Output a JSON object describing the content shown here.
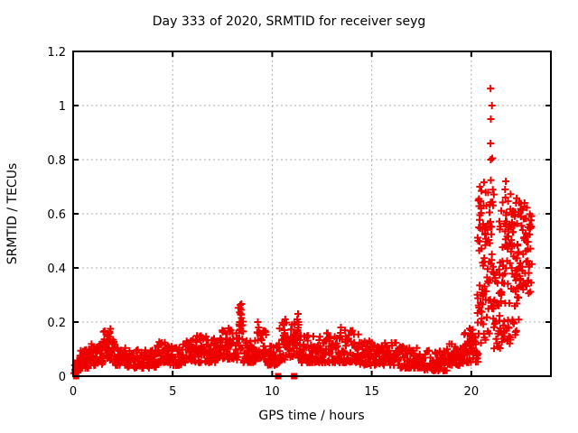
{
  "window": {
    "title": "Day 333 of 2020, SRMTID for receiver seyg"
  },
  "chart_data": {
    "type": "scatter",
    "title": "Day 333 of 2020, SRMTID for receiver seyg",
    "xlabel": "GPS time / hours",
    "ylabel": "SRMTID / TECUs",
    "xlim": [
      0,
      24
    ],
    "ylim": [
      0,
      1.2
    ],
    "xticks": {
      "values": [
        0,
        5,
        10,
        15,
        20
      ],
      "labels": [
        "0",
        "5",
        "10",
        "15",
        "20"
      ]
    },
    "yticks": {
      "values": [
        0,
        0.2,
        0.4,
        0.6,
        0.8,
        1.0,
        1.2
      ],
      "labels": [
        "0",
        "0.2",
        "0.4",
        "0.6",
        "0.8",
        "1",
        "1.2"
      ]
    },
    "grid": true,
    "grid_style": "dashed",
    "legend": "none",
    "marker": {
      "shape": "plus",
      "color": "#ee0000",
      "size": 9
    },
    "colors": {
      "points": "#ee0000",
      "grid": "#b0b0b0",
      "border": "#000000",
      "background": "#ffffff"
    },
    "seed": 7,
    "series": {
      "name": "SRMTID",
      "description": "Dense band of + markers ~0.03-0.18 TECUs from 0-20.3h with bumps and spikes, large burst 20.3-23.0h reaching 1.06",
      "segments_format": [
        "x_start_hours",
        "x_end_hours",
        "n_points",
        "y_min",
        "y_max",
        "bias_exponent"
      ],
      "segments": [
        [
          0.05,
          0.35,
          18,
          0.01,
          0.06,
          1.4
        ],
        [
          0.3,
          0.9,
          40,
          0.03,
          0.1,
          1.6
        ],
        [
          0.9,
          1.5,
          40,
          0.04,
          0.12,
          1.6
        ],
        [
          1.5,
          2.1,
          45,
          0.06,
          0.17,
          1.5
        ],
        [
          2.1,
          2.7,
          40,
          0.04,
          0.11,
          1.6
        ],
        [
          2.7,
          3.4,
          45,
          0.03,
          0.1,
          1.6
        ],
        [
          3.4,
          4.2,
          50,
          0.03,
          0.1,
          1.6
        ],
        [
          4.2,
          4.8,
          40,
          0.05,
          0.13,
          1.6
        ],
        [
          4.8,
          5.5,
          45,
          0.04,
          0.11,
          1.6
        ],
        [
          5.5,
          6.2,
          45,
          0.05,
          0.14,
          1.5
        ],
        [
          6.2,
          7.3,
          70,
          0.05,
          0.15,
          1.5
        ],
        [
          7.3,
          8.3,
          65,
          0.06,
          0.18,
          1.4
        ],
        [
          8.3,
          8.55,
          18,
          0.08,
          0.27,
          1.1
        ],
        [
          8.55,
          9.2,
          45,
          0.05,
          0.14,
          1.5
        ],
        [
          9.2,
          9.7,
          35,
          0.06,
          0.17,
          1.4
        ],
        [
          9.7,
          10.35,
          40,
          0.04,
          0.12,
          1.6
        ],
        [
          10.35,
          11.45,
          75,
          0.06,
          0.2,
          1.3
        ],
        [
          11.45,
          12.3,
          55,
          0.05,
          0.15,
          1.5
        ],
        [
          12.3,
          13.6,
          80,
          0.05,
          0.16,
          1.5
        ],
        [
          13.6,
          14.4,
          50,
          0.05,
          0.17,
          1.5
        ],
        [
          14.4,
          15.4,
          60,
          0.04,
          0.13,
          1.6
        ],
        [
          15.4,
          16.4,
          60,
          0.04,
          0.13,
          1.6
        ],
        [
          16.4,
          17.6,
          70,
          0.03,
          0.11,
          1.6
        ],
        [
          17.6,
          18.8,
          70,
          0.02,
          0.1,
          1.6
        ],
        [
          18.8,
          19.6,
          50,
          0.04,
          0.12,
          1.6
        ],
        [
          19.6,
          20.35,
          50,
          0.05,
          0.18,
          1.4
        ],
        [
          20.3,
          20.75,
          55,
          0.12,
          0.72,
          1.15
        ],
        [
          20.75,
          21.15,
          45,
          0.15,
          0.75,
          1.1
        ],
        [
          21.1,
          21.45,
          25,
          0.1,
          0.4,
          1.3
        ],
        [
          21.4,
          22.0,
          70,
          0.12,
          0.68,
          1.05
        ],
        [
          22.0,
          22.4,
          50,
          0.15,
          0.66,
          1.05
        ],
        [
          22.4,
          23.05,
          60,
          0.28,
          0.65,
          1.0
        ]
      ],
      "spike_columns": [
        {
          "x": 1.82,
          "ys": [
            0.13,
            0.145,
            0.16,
            0.175
          ]
        },
        {
          "x": 8.42,
          "ys": [
            0.17,
            0.185,
            0.2,
            0.215,
            0.23,
            0.245,
            0.263
          ]
        },
        {
          "x": 9.3,
          "ys": [
            0.16,
            0.18,
            0.2
          ]
        },
        {
          "x": 10.62,
          "ys": [
            0.15,
            0.17,
            0.19,
            0.21
          ]
        },
        {
          "x": 11.28,
          "ys": [
            0.15,
            0.17,
            0.19,
            0.21,
            0.23
          ]
        },
        {
          "x": 13.42,
          "ys": [
            0.14,
            0.16,
            0.18
          ]
        },
        {
          "x": 19.95,
          "ys": [
            0.13,
            0.15,
            0.17
          ]
        },
        {
          "x": 20.45,
          "ys": [
            0.62,
            0.655,
            0.7
          ]
        },
        {
          "x": 21.0,
          "ys": [
            0.8,
            0.805,
            0.86,
            0.95,
            1.0,
            1.063
          ]
        },
        {
          "x": 21.7,
          "ys": [
            0.66,
            0.69,
            0.72
          ]
        }
      ],
      "zero_square_markers": [
        {
          "x": 0.15,
          "y": 0
        },
        {
          "x": 10.3,
          "y": 0
        },
        {
          "x": 11.1,
          "y": 0
        }
      ]
    }
  }
}
